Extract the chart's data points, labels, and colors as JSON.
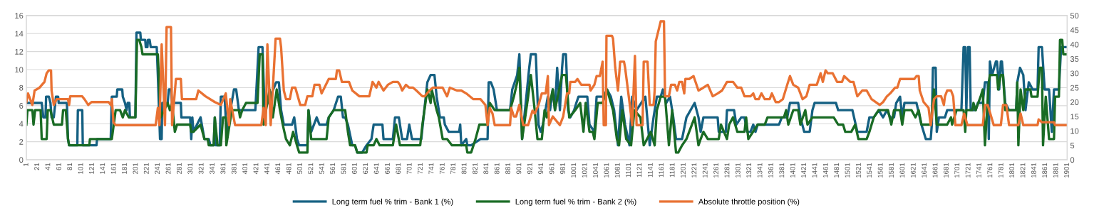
{
  "chart_data": {
    "type": "line",
    "ylim": [
      0,
      16
    ],
    "yticks": [
      0,
      2,
      4,
      6,
      8,
      10,
      12,
      14,
      16
    ],
    "y2lim": [
      0,
      50
    ],
    "y2ticks": [
      0,
      5,
      10,
      15,
      20,
      25,
      30,
      35,
      40,
      45,
      50
    ],
    "xlim": [
      1,
      1901
    ],
    "xticks": [
      1,
      21,
      41,
      61,
      81,
      101,
      121,
      141,
      161,
      181,
      201,
      221,
      241,
      261,
      281,
      301,
      321,
      341,
      361,
      381,
      401,
      421,
      441,
      461,
      481,
      501,
      521,
      541,
      561,
      581,
      601,
      621,
      641,
      661,
      681,
      701,
      721,
      741,
      761,
      781,
      801,
      821,
      841,
      861,
      881,
      901,
      921,
      941,
      961,
      981,
      1001,
      1021,
      1041,
      1061,
      1081,
      1101,
      1121,
      1141,
      1161,
      1181,
      1201,
      1221,
      1241,
      1261,
      1281,
      1301,
      1321,
      1341,
      1361,
      1381,
      1401,
      1421,
      1441,
      1461,
      1481,
      1501,
      1521,
      1541,
      1561,
      1581,
      1601,
      1621,
      1641,
      1661,
      1681,
      1701,
      1721,
      1741,
      1761,
      1781,
      1801,
      1821,
      1841,
      1861,
      1881,
      1901
    ],
    "grid": "y",
    "legend": "bottom",
    "marker": "none",
    "line_style": "solid",
    "series": [
      {
        "name": "Long term fuel % trim - Bank 1 (%)",
        "color": "#156082",
        "x": [
          1,
          29,
          32,
          36,
          37,
          42,
          45,
          47,
          51,
          55,
          59,
          60,
          75,
          77,
          79,
          94,
          95,
          103,
          104,
          129,
          130,
          155,
          157,
          166,
          167,
          176,
          177,
          181,
          184,
          186,
          189,
          190,
          200,
          202,
          209,
          210,
          218,
          219,
          222,
          223,
          226,
          228,
          239,
          241,
          245,
          248,
          249,
          259,
          261,
          265,
          267,
          283,
          284,
          300,
          302,
          304,
          306,
          319,
          326,
          334,
          337,
          343,
          345,
          347,
          354,
          356,
          363,
          367,
          371,
          380,
          384,
          389,
          419,
          425,
          432,
          436,
          457,
          462,
          466,
          471,
          486,
          490,
          495,
          499,
          514,
          516,
          521,
          531,
          536,
          549,
          553,
          562,
          570,
          575,
          579,
          583,
          588,
          596,
          601,
          605,
          614,
          622,
          631,
          635,
          651,
          653,
          670,
          674,
          681,
          687,
          696,
          700,
          705,
          722,
          726,
          733,
          739,
          746,
          750,
          756,
          763,
          765,
          772,
          791,
          793,
          795,
          804,
          806,
          813,
          830,
          843,
          845,
          849,
          854,
          858,
          860,
          884,
          888,
          897,
          901,
          906,
          919,
          922,
          925,
          931,
          936,
          940,
          944,
          953,
          957,
          962,
          966,
          970,
          975,
          979,
          981,
          986,
          990,
          994,
          1001,
          1005,
          1009,
          1025,
          1029,
          1038,
          1042,
          1055,
          1061,
          1068,
          1074,
          1081,
          1087,
          1094,
          1102,
          1107,
          1115,
          1131,
          1139,
          1146,
          1152,
          1159,
          1163,
          1169,
          1176,
          1182,
          1187,
          1198,
          1206,
          1221,
          1228,
          1232,
          1237,
          1263,
          1265,
          1278,
          1280,
          1293,
          1297,
          1306,
          1312,
          1317,
          1323,
          1328,
          1332,
          1336,
          1375,
          1380,
          1390,
          1395,
          1410,
          1414,
          1421,
          1431,
          1436,
          1440,
          1479,
          1483,
          1509,
          1518,
          1535,
          1540,
          1548,
          1557,
          1565,
          1572,
          1578,
          1585,
          1589,
          1596,
          1600,
          1604,
          1626,
          1635,
          1643,
          1652,
          1654,
          1656,
          1661,
          1663,
          1667,
          1678,
          1682,
          1708,
          1712,
          1715,
          1717,
          1720,
          1723,
          1725,
          1734,
          1738,
          1747,
          1751,
          1756,
          1758,
          1760,
          1764,
          1771,
          1773,
          1777,
          1780,
          1782,
          1788,
          1795,
          1808,
          1810,
          1815,
          1821,
          1825,
          1831,
          1838,
          1847,
          1849,
          1855,
          1860,
          1868,
          1873,
          1877,
          1886,
          1890,
          1901
        ],
        "values": [
          6.3,
          6.3,
          4.7,
          4.7,
          7.0,
          7.0,
          6.3,
          4.7,
          4.7,
          7.0,
          7.0,
          6.3,
          6.3,
          2.3,
          1.6,
          1.6,
          5.5,
          5.5,
          1.6,
          1.6,
          2.3,
          2.3,
          7.0,
          7.0,
          7.8,
          7.8,
          7.0,
          6.3,
          5.5,
          6.3,
          6.3,
          4.7,
          4.7,
          14.1,
          14.1,
          13.3,
          13.3,
          12.5,
          12.5,
          13.3,
          13.3,
          12.5,
          12.5,
          9.4,
          2.3,
          2.3,
          6.3,
          6.3,
          7.8,
          7.8,
          6.3,
          6.3,
          4.7,
          4.7,
          2.3,
          4.7,
          3.1,
          4.7,
          2.3,
          2.3,
          1.6,
          1.6,
          4.7,
          1.6,
          1.6,
          7.0,
          7.0,
          2.3,
          4.7,
          7.8,
          7.8,
          5.5,
          5.5,
          12.5,
          12.5,
          5.5,
          8.6,
          8.6,
          5.5,
          3.9,
          3.9,
          4.7,
          2.3,
          1.6,
          1.6,
          5.5,
          3.1,
          4.7,
          3.9,
          3.9,
          4.7,
          5.5,
          7.0,
          7.0,
          4.7,
          4.7,
          3.9,
          1.6,
          1.6,
          0.8,
          0.8,
          1.6,
          2.3,
          3.9,
          3.9,
          2.3,
          2.3,
          4.7,
          4.7,
          2.3,
          2.3,
          3.9,
          2.3,
          2.3,
          4.7,
          8.6,
          9.4,
          9.4,
          7.0,
          4.7,
          4.7,
          3.9,
          3.1,
          3.1,
          3.9,
          1.6,
          2.3,
          1.6,
          1.6,
          2.3,
          2.3,
          8.6,
          8.6,
          7.8,
          6.3,
          5.5,
          5.5,
          7.8,
          9.4,
          11.7,
          2.3,
          10.2,
          11.7,
          11.7,
          11.7,
          3.9,
          3.1,
          3.9,
          7.0,
          5.5,
          7.8,
          5.5,
          10.2,
          5.5,
          10.2,
          11.7,
          11.7,
          5.5,
          4.7,
          5.5,
          6.3,
          7.0,
          7.0,
          3.9,
          3.1,
          7.0,
          7.0,
          7.8,
          7.0,
          5.5,
          1.6,
          7.0,
          3.9,
          1.6,
          7.0,
          5.5,
          7.0,
          1.6,
          4.7,
          7.0,
          7.0,
          7.8,
          6.3,
          7.0,
          4.7,
          2.3,
          2.3,
          4.7,
          6.3,
          4.7,
          3.1,
          4.7,
          4.7,
          3.1,
          3.1,
          5.5,
          5.5,
          3.9,
          4.7,
          4.7,
          3.1,
          3.1,
          3.9,
          3.1,
          3.9,
          3.9,
          4.7,
          4.7,
          6.3,
          6.3,
          4.7,
          3.1,
          3.1,
          5.5,
          6.3,
          6.3,
          5.5,
          5.5,
          3.1,
          3.1,
          4.7,
          4.7,
          5.5,
          4.7,
          5.5,
          4.7,
          4.7,
          6.3,
          7.0,
          4.7,
          6.3,
          6.3,
          3.9,
          2.3,
          2.3,
          3.9,
          10.2,
          10.2,
          3.1,
          4.7,
          4.7,
          5.5,
          5.5,
          12.5,
          12.5,
          5.5,
          12.5,
          12.5,
          5.5,
          5.5,
          6.3,
          6.3,
          8.6,
          8.6,
          2.3,
          10.9,
          9.4,
          10.9,
          10.9,
          7.8,
          10.9,
          10.9,
          6.3,
          5.5,
          5.5,
          8.6,
          10.2,
          9.4,
          5.5,
          8.6,
          7.8,
          7.8,
          12.5,
          12.5,
          7.8,
          7.8,
          3.1,
          7.8,
          7.8,
          12.5,
          12.5
        ]
      },
      {
        "name": "Long term fuel % trim - Bank 2 (%)",
        "color": "#196b24",
        "x": [
          1,
          3,
          12,
          14,
          17,
          27,
          29,
          38,
          40,
          45,
          51,
          66,
          68,
          73,
          77,
          79,
          116,
          117,
          157,
          164,
          172,
          177,
          181,
          188,
          200,
          203,
          207,
          211,
          213,
          241,
          246,
          259,
          263,
          267,
          272,
          276,
          300,
          302,
          306,
          319,
          326,
          332,
          334,
          343,
          345,
          350,
          356,
          360,
          365,
          366,
          376,
          389,
          391,
          395,
          402,
          423,
          427,
          432,
          434,
          445,
          451,
          458,
          464,
          469,
          475,
          482,
          488,
          495,
          499,
          514,
          516,
          521,
          549,
          553,
          562,
          583,
          588,
          592,
          601,
          605,
          622,
          624,
          635,
          640,
          646,
          670,
          676,
          683,
          720,
          724,
          733,
          739,
          741,
          750,
          754,
          761,
          769,
          778,
          804,
          806,
          813,
          821,
          828,
          843,
          847,
          856,
          884,
          891,
          897,
          901,
          906,
          917,
          922,
          929,
          934,
          942,
          947,
          951,
          962,
          966,
          979,
          986,
          992,
          1003,
          1012,
          1018,
          1022,
          1029,
          1035,
          1038,
          1044,
          1053,
          1061,
          1072,
          1079,
          1083,
          1089,
          1096,
          1105,
          1111,
          1122,
          1128,
          1141,
          1148,
          1152,
          1159,
          1167,
          1174,
          1180,
          1187,
          1191,
          1198,
          1206,
          1221,
          1228,
          1232,
          1237,
          1245,
          1265,
          1269,
          1280,
          1284,
          1291,
          1299,
          1312,
          1315,
          1319,
          1336,
          1349,
          1354,
          1384,
          1388,
          1392,
          1401,
          1410,
          1414,
          1423,
          1427,
          1436,
          1475,
          1483,
          1492,
          1496,
          1507,
          1514,
          1520,
          1535,
          1540,
          1548,
          1557,
          1574,
          1580,
          1585,
          1596,
          1600,
          1604,
          1617,
          1624,
          1630,
          1635,
          1652,
          1658,
          1663,
          1682,
          1689,
          1691,
          1699,
          1712,
          1715,
          1717,
          1728,
          1730,
          1734,
          1743,
          1747,
          1751,
          1758,
          1760,
          1773,
          1775,
          1780,
          1784,
          1788,
          1808,
          1810,
          1812,
          1816,
          1821,
          1825,
          1834,
          1836,
          1847,
          1851,
          1855,
          1857,
          1862,
          1868,
          1877,
          1879,
          1886,
          1888,
          1892,
          1894,
          1901
        ],
        "values": [
          3.9,
          5.5,
          5.5,
          3.9,
          5.5,
          5.5,
          2.3,
          2.3,
          5.5,
          5.5,
          3.9,
          3.9,
          5.5,
          5.5,
          2.3,
          1.6,
          1.6,
          2.3,
          2.3,
          5.5,
          5.5,
          4.7,
          5.5,
          4.7,
          4.7,
          13.3,
          13.3,
          12.5,
          11.7,
          11.7,
          4.7,
          6.3,
          5.5,
          6.3,
          3.1,
          3.9,
          3.9,
          3.1,
          3.1,
          3.9,
          2.3,
          2.3,
          1.6,
          1.6,
          4.7,
          1.6,
          1.6,
          4.7,
          4.7,
          1.6,
          5.5,
          5.5,
          4.7,
          5.5,
          6.3,
          6.3,
          11.7,
          11.7,
          3.9,
          7.8,
          4.7,
          7.8,
          5.5,
          3.9,
          2.3,
          1.6,
          3.1,
          1.6,
          0.8,
          0.8,
          5.5,
          2.3,
          2.3,
          4.7,
          5.5,
          5.5,
          3.1,
          1.6,
          1.6,
          0.8,
          0.8,
          1.6,
          1.6,
          2.3,
          1.6,
          1.6,
          3.9,
          1.6,
          1.6,
          3.9,
          7.8,
          6.3,
          7.8,
          5.5,
          4.7,
          2.3,
          2.3,
          1.6,
          1.6,
          0.8,
          0.8,
          2.3,
          3.9,
          3.9,
          6.3,
          5.5,
          5.5,
          7.0,
          8.6,
          10.2,
          2.3,
          7.0,
          9.4,
          5.5,
          2.3,
          2.3,
          5.5,
          4.7,
          7.8,
          5.5,
          9.4,
          9.4,
          4.7,
          5.5,
          6.3,
          3.1,
          6.3,
          3.1,
          3.1,
          2.3,
          6.3,
          6.3,
          7.8,
          5.5,
          2.3,
          1.6,
          5.5,
          2.3,
          1.6,
          5.5,
          4.7,
          1.6,
          3.1,
          1.6,
          5.5,
          7.0,
          7.0,
          1.6,
          5.5,
          0.8,
          0.8,
          1.6,
          2.3,
          4.7,
          1.6,
          2.3,
          3.1,
          2.3,
          2.3,
          3.9,
          2.3,
          3.9,
          4.7,
          3.1,
          3.1,
          4.7,
          2.3,
          3.9,
          3.9,
          4.7,
          4.7,
          5.5,
          3.9,
          5.5,
          5.5,
          3.9,
          5.5,
          3.9,
          4.7,
          4.7,
          3.9,
          3.9,
          3.1,
          3.1,
          3.9,
          2.3,
          2.3,
          3.1,
          4.7,
          5.5,
          5.5,
          3.9,
          5.5,
          5.5,
          3.9,
          5.5,
          5.5,
          4.7,
          5.5,
          3.9,
          3.9,
          7.8,
          3.9,
          3.9,
          4.7,
          3.9,
          5.5,
          5.5,
          3.1,
          5.5,
          5.5,
          6.3,
          5.5,
          7.0,
          7.8,
          1.6,
          8.6,
          9.4,
          9.4,
          7.8,
          9.4,
          9.4,
          5.5,
          5.5,
          8.6,
          1.6,
          7.8,
          5.5,
          7.8,
          7.8,
          7.0,
          7.0,
          10.2,
          10.2,
          1.6,
          7.0,
          2.3,
          2.3,
          7.0,
          7.0,
          13.3,
          13.3,
          11.7,
          11.7
        ]
      },
      {
        "name": "Absolute throttle position (%)",
        "color": "#e97132",
        "axis": "y2",
        "x": [
          1,
          4,
          12,
          16,
          25,
          34,
          38,
          42,
          46,
          47,
          51,
          56,
          77,
          79,
          81,
          103,
          107,
          114,
          120,
          151,
          155,
          157,
          160,
          164,
          237,
          241,
          244,
          248,
          254,
          257,
          265,
          267,
          274,
          283,
          285,
          311,
          315,
          328,
          345,
          356,
          365,
          371,
          373,
          382,
          430,
          434,
          438,
          441,
          447,
          451,
          456,
          464,
          466,
          471,
          475,
          482,
          486,
          492,
          501,
          510,
          514,
          523,
          527,
          536,
          540,
          553,
          566,
          568,
          572,
          577,
          590,
          596,
          609,
          618,
          627,
          633,
          640,
          644,
          653,
          661,
          670,
          679,
          683,
          687,
          694,
          700,
          707,
          713,
          724,
          728,
          737,
          743,
          754,
          761,
          769,
          774,
          787,
          795,
          804,
          817,
          830,
          839,
          843,
          847,
          852,
          856,
          884,
          886,
          891,
          895,
          901,
          908,
          917,
          925,
          929,
          936,
          942,
          949,
          953,
          955,
          962,
          975,
          981,
          988,
          992,
          994,
          1003,
          1007,
          1014,
          1029,
          1031,
          1038,
          1042,
          1048,
          1053,
          1055,
          1059,
          1060,
          1070,
          1072,
          1076,
          1081,
          1085,
          1092,
          1094,
          1102,
          1107,
          1112,
          1115,
          1126,
          1128,
          1135,
          1139,
          1146,
          1148,
          1150,
          1159,
          1165,
          1167,
          1174,
          1178,
          1185,
          1189,
          1193,
          1198,
          1202,
          1204,
          1211,
          1219,
          1228,
          1237,
          1245,
          1254,
          1263,
          1271,
          1280,
          1291,
          1299,
          1306,
          1312,
          1323,
          1328,
          1332,
          1338,
          1343,
          1349,
          1358,
          1362,
          1369,
          1375,
          1382,
          1390,
          1395,
          1401,
          1410,
          1418,
          1425,
          1431,
          1444,
          1451,
          1455,
          1460,
          1464,
          1473,
          1481,
          1490,
          1494,
          1505,
          1511,
          1518,
          1527,
          1535,
          1544,
          1559,
          1565,
          1572,
          1578,
          1587,
          1591,
          1596,
          1622,
          1626,
          1630,
          1632,
          1639,
          1648,
          1652,
          1658,
          1663,
          1671,
          1676,
          1678,
          1682,
          1689,
          1693,
          1697,
          1708,
          1713,
          1719,
          1747,
          1751,
          1756,
          1767,
          1780,
          1784,
          1790,
          1795,
          1812,
          1816,
          1821,
          1847,
          1849,
          1855,
          1877,
          1879,
          1901
        ],
        "values": [
          20,
          23,
          19,
          24,
          25,
          27,
          30,
          31,
          31,
          24,
          19,
          21,
          21,
          19,
          22,
          22,
          21,
          19,
          20,
          20,
          19,
          21,
          13,
          12,
          12,
          18,
          12,
          40,
          12,
          46,
          46,
          12,
          28,
          28,
          21,
          21,
          24,
          22,
          20,
          19,
          23,
          12,
          21,
          12,
          12,
          18,
          12,
          40,
          12,
          25,
          42,
          42,
          39,
          24,
          21,
          21,
          25,
          25,
          19,
          19,
          22,
          22,
          26,
          26,
          23,
          28,
          28,
          31,
          31,
          27,
          27,
          24,
          22,
          22,
          22,
          27,
          25,
          27,
          24,
          26,
          27,
          27,
          26,
          24,
          26,
          25,
          25,
          24,
          22,
          22,
          24,
          25,
          25,
          25,
          22,
          25,
          24,
          24,
          23,
          21,
          21,
          19,
          12,
          18,
          16,
          12,
          12,
          18,
          15,
          15,
          19,
          12,
          12,
          17,
          16,
          19,
          23,
          23,
          29,
          12,
          15,
          12,
          15,
          23,
          23,
          27,
          27,
          28,
          26,
          26,
          24,
          26,
          29,
          29,
          34,
          12,
          12,
          43,
          43,
          42,
          32,
          24,
          34,
          34,
          32,
          20,
          12,
          36,
          12,
          12,
          34,
          34,
          19,
          19,
          24,
          41,
          48,
          48,
          22,
          22,
          26,
          26,
          24,
          27,
          27,
          23,
          28,
          28,
          29,
          24,
          25,
          26,
          22,
          23,
          24,
          27,
          27,
          25,
          25,
          22,
          22,
          23,
          21,
          21,
          23,
          21,
          21,
          23,
          20,
          20,
          21,
          26,
          29,
          26,
          25,
          21,
          22,
          26,
          26,
          30,
          27,
          31,
          30,
          30,
          27,
          27,
          29,
          27,
          27,
          22,
          24,
          24,
          21,
          19,
          20,
          22,
          23,
          25,
          25,
          28,
          28,
          29,
          29,
          24,
          20,
          18,
          12,
          21,
          22,
          22,
          19,
          22,
          24,
          24,
          22,
          12,
          12,
          16,
          12,
          12,
          19,
          19,
          12,
          12,
          19,
          19,
          12,
          12,
          16,
          12,
          12,
          14,
          13,
          13,
          12,
          12
        ]
      }
    ]
  }
}
